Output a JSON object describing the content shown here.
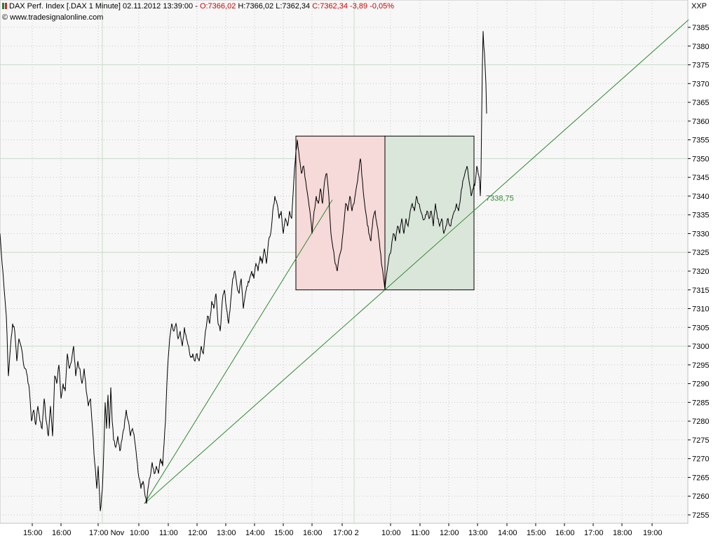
{
  "header": {
    "instrument": "DAX Perf. Index [.DAX  1 Minute]",
    "datetime": "02.11.2012 13:39:00",
    "open": "O:7366,02",
    "high": "H:7366,02",
    "low": "L:7362,34",
    "close": "C:7362,34",
    "change": "-3,89",
    "change_pct": "-0,05%",
    "copyright": "© www.tradesignalonline.com",
    "symbol": "XXP"
  },
  "colors": {
    "background": "#f7f7f7",
    "grid": "#c8dcc8",
    "price": "#000000",
    "trendline": "#2e8b2e",
    "box_red": "#f6d9d9",
    "box_green": "#dbe6db",
    "change_negative": "#d00000"
  },
  "chart_data": {
    "type": "line",
    "title": "",
    "xlabel": "",
    "ylabel": "",
    "ylim": [
      7253,
      7390
    ],
    "y_ticks": [
      7255,
      7260,
      7265,
      7270,
      7275,
      7280,
      7285,
      7290,
      7295,
      7300,
      7305,
      7310,
      7315,
      7320,
      7325,
      7330,
      7335,
      7340,
      7345,
      7350,
      7355,
      7360,
      7365,
      7370,
      7375,
      7380,
      7385
    ],
    "x_ticks": [
      "15:00",
      "16:00",
      "17:00 Nov",
      "10:00",
      "11:00",
      "12:00",
      "13:00",
      "14:00",
      "15:00",
      "16:00",
      "17:00 2",
      "10:00",
      "11:00",
      "12:00",
      "13:00",
      "14:00",
      "15:00",
      "16:00",
      "17:00",
      "18:00",
      "19:00"
    ],
    "series": [
      {
        "values": [
          [
            0,
            7330
          ],
          [
            3,
            7322
          ],
          [
            6,
            7315
          ],
          [
            9,
            7308
          ],
          [
            12,
            7292
          ],
          [
            15,
            7300
          ],
          [
            18,
            7306
          ],
          [
            21,
            7304
          ],
          [
            24,
            7296
          ],
          [
            27,
            7302
          ],
          [
            30,
            7300
          ],
          [
            33,
            7296
          ],
          [
            36,
            7294
          ],
          [
            39,
            7292
          ],
          [
            42,
            7288
          ],
          [
            45,
            7280
          ],
          [
            48,
            7283
          ],
          [
            51,
            7279
          ],
          [
            54,
            7284
          ],
          [
            57,
            7280
          ],
          [
            60,
            7278
          ],
          [
            63,
            7286
          ],
          [
            66,
            7280
          ],
          [
            69,
            7276
          ],
          [
            72,
            7284
          ],
          [
            75,
            7276
          ],
          [
            78,
            7292
          ],
          [
            81,
            7290
          ],
          [
            84,
            7295
          ],
          [
            87,
            7286
          ],
          [
            90,
            7290
          ],
          [
            93,
            7288
          ],
          [
            96,
            7298
          ],
          [
            99,
            7294
          ],
          [
            102,
            7296
          ],
          [
            105,
            7300
          ],
          [
            108,
            7292
          ],
          [
            111,
            7296
          ],
          [
            114,
            7294
          ],
          [
            117,
            7290
          ],
          [
            120,
            7294
          ],
          [
            123,
            7288
          ],
          [
            126,
            7284
          ],
          [
            129,
            7286
          ],
          [
            132,
            7278
          ],
          [
            135,
            7269
          ],
          [
            138,
            7262
          ],
          [
            140,
            7268
          ],
          [
            143,
            7256
          ],
          [
            146,
            7262
          ],
          [
            148,
            7272
          ],
          [
            150,
            7285
          ],
          [
            152,
            7278
          ],
          [
            154,
            7287
          ],
          [
            156,
            7278
          ],
          [
            158,
            7289
          ],
          [
            160,
            7280
          ],
          [
            162,
            7275
          ],
          [
            165,
            7273
          ],
          [
            168,
            7276
          ],
          [
            171,
            7272
          ],
          [
            174,
            7275
          ],
          [
            177,
            7278
          ],
          [
            180,
            7283
          ],
          [
            183,
            7280
          ],
          [
            186,
            7276
          ],
          [
            189,
            7278
          ],
          [
            192,
            7275
          ],
          [
            195,
            7270
          ],
          [
            198,
            7265
          ],
          [
            201,
            7262
          ],
          [
            204,
            7264
          ],
          [
            207,
            7260
          ],
          [
            209,
            7258
          ],
          [
            211,
            7262
          ],
          [
            214,
            7265
          ],
          [
            217,
            7269
          ],
          [
            220,
            7266
          ],
          [
            223,
            7268
          ],
          [
            226,
            7266
          ],
          [
            229,
            7270
          ],
          [
            232,
            7268
          ],
          [
            234,
            7274
          ],
          [
            236,
            7280
          ],
          [
            238,
            7290
          ],
          [
            240,
            7297
          ],
          [
            242,
            7302
          ],
          [
            245,
            7306
          ],
          [
            248,
            7304
          ],
          [
            251,
            7306
          ],
          [
            254,
            7302
          ],
          [
            257,
            7304
          ],
          [
            260,
            7300
          ],
          [
            263,
            7305
          ],
          [
            266,
            7302
          ],
          [
            269,
            7300
          ],
          [
            272,
            7297
          ],
          [
            275,
            7298
          ],
          [
            278,
            7296
          ],
          [
            281,
            7298
          ],
          [
            284,
            7296
          ],
          [
            287,
            7300
          ],
          [
            290,
            7298
          ],
          [
            293,
            7304
          ],
          [
            296,
            7308
          ],
          [
            299,
            7306
          ],
          [
            302,
            7312
          ],
          [
            305,
            7310
          ],
          [
            308,
            7314
          ],
          [
            311,
            7306
          ],
          [
            314,
            7304
          ],
          [
            317,
            7312
          ],
          [
            320,
            7315
          ],
          [
            323,
            7310
          ],
          [
            326,
            7306
          ],
          [
            329,
            7312
          ],
          [
            332,
            7318
          ],
          [
            335,
            7320
          ],
          [
            338,
            7316
          ],
          [
            341,
            7314
          ],
          [
            344,
            7318
          ],
          [
            347,
            7310
          ],
          [
            350,
            7314
          ],
          [
            353,
            7316
          ],
          [
            356,
            7318
          ],
          [
            359,
            7320
          ],
          [
            362,
            7318
          ],
          [
            365,
            7322
          ],
          [
            368,
            7320
          ],
          [
            371,
            7324
          ],
          [
            374,
            7322
          ],
          [
            377,
            7326
          ],
          [
            380,
            7322
          ],
          [
            383,
            7328
          ],
          [
            386,
            7330
          ],
          [
            389,
            7336
          ],
          [
            392,
            7340
          ],
          [
            395,
            7338
          ],
          [
            398,
            7334
          ],
          [
            401,
            7336
          ],
          [
            404,
            7330
          ],
          [
            407,
            7334
          ],
          [
            410,
            7332
          ],
          [
            413,
            7336
          ],
          [
            416,
            7334
          ],
          [
            419,
            7344
          ],
          [
            422,
            7352
          ],
          [
            424,
            7355
          ],
          [
            427,
            7350
          ],
          [
            430,
            7346
          ],
          [
            433,
            7348
          ],
          [
            436,
            7344
          ],
          [
            439,
            7340
          ],
          [
            442,
            7336
          ],
          [
            445,
            7330
          ],
          [
            448,
            7336
          ],
          [
            451,
            7340
          ],
          [
            454,
            7338
          ],
          [
            457,
            7342
          ],
          [
            460,
            7338
          ],
          [
            463,
            7344
          ],
          [
            466,
            7346
          ],
          [
            469,
            7340
          ],
          [
            472,
            7330
          ],
          [
            475,
            7326
          ],
          [
            478,
            7322
          ],
          [
            481,
            7320
          ],
          [
            484,
            7324
          ],
          [
            487,
            7326
          ],
          [
            490,
            7332
          ],
          [
            493,
            7338
          ],
          [
            496,
            7336
          ],
          [
            499,
            7340
          ],
          [
            502,
            7336
          ],
          [
            505,
            7338
          ],
          [
            508,
            7342
          ],
          [
            511,
            7346
          ],
          [
            514,
            7350
          ],
          [
            517,
            7344
          ],
          [
            520,
            7338
          ],
          [
            523,
            7334
          ],
          [
            526,
            7330
          ],
          [
            529,
            7328
          ],
          [
            532,
            7334
          ],
          [
            535,
            7336
          ],
          [
            538,
            7332
          ],
          [
            541,
            7328
          ],
          [
            544,
            7322
          ],
          [
            547,
            7318
          ],
          [
            549,
            7315
          ],
          [
            552,
            7320
          ],
          [
            555,
            7324
          ],
          [
            558,
            7326
          ],
          [
            561,
            7330
          ],
          [
            564,
            7328
          ],
          [
            567,
            7332
          ],
          [
            570,
            7330
          ],
          [
            573,
            7334
          ],
          [
            576,
            7330
          ],
          [
            579,
            7334
          ],
          [
            582,
            7332
          ],
          [
            585,
            7336
          ],
          [
            588,
            7338
          ],
          [
            591,
            7336
          ],
          [
            594,
            7340
          ],
          [
            597,
            7338
          ],
          [
            600,
            7336
          ],
          [
            603,
            7334
          ],
          [
            606,
            7334
          ],
          [
            609,
            7336
          ],
          [
            612,
            7334
          ],
          [
            615,
            7336
          ],
          [
            618,
            7332
          ],
          [
            621,
            7338
          ],
          [
            624,
            7334
          ],
          [
            627,
            7332
          ],
          [
            630,
            7334
          ],
          [
            633,
            7330
          ],
          [
            636,
            7332
          ],
          [
            639,
            7334
          ],
          [
            642,
            7332
          ],
          [
            645,
            7334
          ],
          [
            648,
            7336
          ],
          [
            651,
            7338
          ],
          [
            654,
            7336
          ],
          [
            657,
            7340
          ],
          [
            660,
            7344
          ],
          [
            663,
            7346
          ],
          [
            666,
            7348
          ],
          [
            669,
            7344
          ],
          [
            672,
            7340
          ],
          [
            675,
            7342
          ],
          [
            678,
            7344
          ],
          [
            680,
            7348
          ],
          [
            682,
            7346
          ],
          [
            684,
            7344
          ],
          [
            685,
            7340
          ],
          [
            686,
            7346
          ],
          [
            687,
            7362
          ],
          [
            688,
            7375
          ],
          [
            689,
            7384
          ],
          [
            690,
            7380
          ],
          [
            691,
            7378
          ],
          [
            692,
            7374
          ],
          [
            693,
            7370
          ],
          [
            694,
            7362
          ]
        ]
      }
    ],
    "annotations": [
      {
        "type": "rect",
        "x0": 422,
        "x1": 549,
        "y0": 7315,
        "y1": 7356,
        "color": "box_red"
      },
      {
        "type": "rect",
        "x0": 549,
        "x1": 676,
        "y0": 7315,
        "y1": 7356,
        "color": "box_green"
      },
      {
        "type": "trendline",
        "x0": 206,
        "y0": 7258,
        "x1": 474,
        "y1": 7339
      },
      {
        "type": "trendline",
        "x0": 206,
        "y0": 7258,
        "x1": 982,
        "y1": 7387
      },
      {
        "type": "label",
        "x": 693,
        "y": 7339,
        "text": "7338,75"
      }
    ],
    "grid": true
  }
}
